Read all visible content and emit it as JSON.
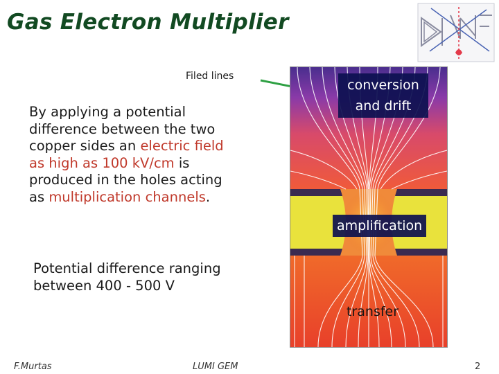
{
  "slide": {
    "title": "Gas Electron Multiplier",
    "field_lines_label": "Filed lines",
    "description": {
      "part1": "By applying a potential difference between the two copper sides an ",
      "highlight1": "electric field as high as 100 kV/cm",
      "part2": " is produced in the holes acting as ",
      "highlight2": "multiplication channels",
      "part3": "."
    },
    "potential_text": "Potential difference ranging between 400 - 500 V",
    "figure_labels": {
      "conversion": "conversion and drift",
      "amplification": "amplification",
      "transfer": "transfer"
    },
    "footer": {
      "author": "F.Murtas",
      "event": "LUMI GEM",
      "page_number": "2"
    }
  },
  "colors": {
    "title": "#124a22",
    "highlight": "#c0392b",
    "arrow": "#2ea043",
    "label_bg": "#0c1050",
    "copper": "#e8e23a",
    "gas_top": "#6b3aa0",
    "gas_bottom": "#e8462a"
  },
  "icons": {
    "logo": "lnf-logo"
  }
}
